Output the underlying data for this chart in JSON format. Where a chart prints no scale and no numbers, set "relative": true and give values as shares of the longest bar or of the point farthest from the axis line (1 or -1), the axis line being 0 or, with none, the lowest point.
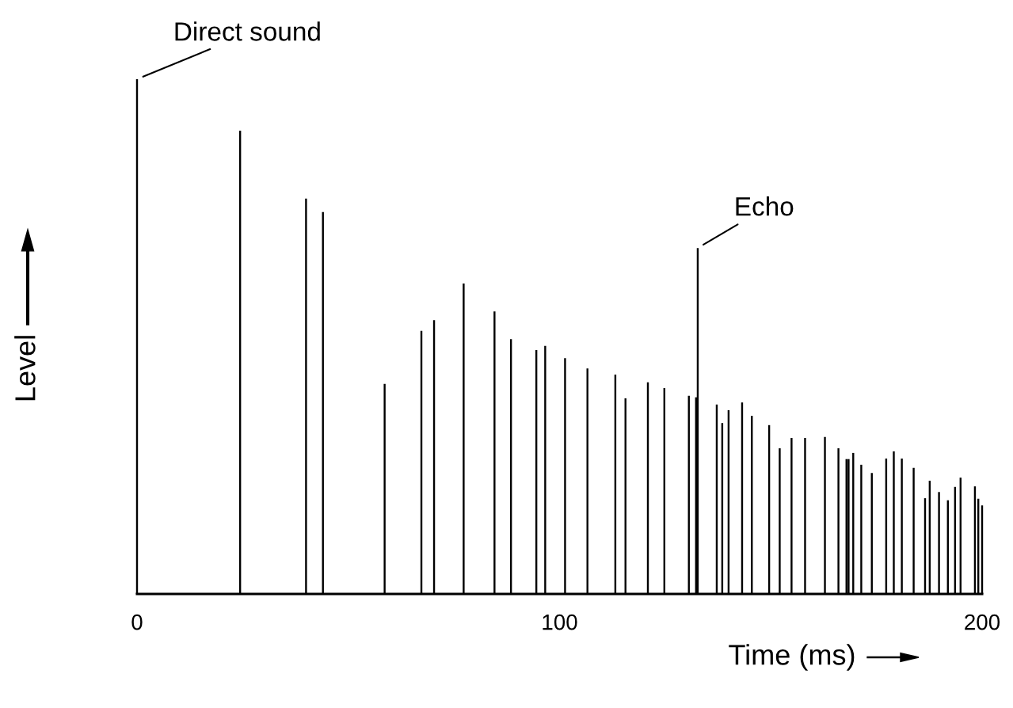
{
  "chart_data": {
    "type": "bar",
    "relative": true,
    "xlabel": "Time (ms)",
    "ylabel": "Level",
    "color": "#000000",
    "x": [
      0,
      24.4,
      40.0,
      44.0,
      58.6,
      67.3,
      70.3,
      77.3,
      84.6,
      88.5,
      94.5,
      96.6,
      101.3,
      106.6,
      113.2,
      115.6,
      120.9,
      124.8,
      130.6,
      132.3,
      132.7,
      137.2,
      138.5,
      140.0,
      143.2,
      145.5,
      149.6,
      152.1,
      154.9,
      158.1,
      162.8,
      166.0,
      167.9,
      168.4,
      169.5,
      171.4,
      173.9,
      177.3,
      179.1,
      181.0,
      183.8,
      186.5,
      187.6,
      189.8,
      191.9,
      193.6,
      194.9,
      198.3,
      199.1,
      200
    ],
    "values": [
      1.0,
      0.9,
      0.768,
      0.742,
      0.408,
      0.511,
      0.532,
      0.603,
      0.549,
      0.495,
      0.474,
      0.482,
      0.458,
      0.438,
      0.426,
      0.38,
      0.411,
      0.4,
      0.385,
      0.382,
      0.672,
      0.368,
      0.332,
      0.357,
      0.372,
      0.346,
      0.328,
      0.283,
      0.303,
      0.303,
      0.305,
      0.283,
      0.262,
      0.262,
      0.274,
      0.251,
      0.235,
      0.263,
      0.277,
      0.263,
      0.245,
      0.186,
      0.22,
      0.198,
      0.182,
      0.208,
      0.226,
      0.209,
      0.185,
      0.172
    ],
    "xlim": [
      0,
      200
    ],
    "xticks": [
      0,
      100,
      200
    ],
    "grid": false,
    "annotations": [
      {
        "text": "Direct sound",
        "x": 0,
        "y": 1.0
      },
      {
        "text": "Echo",
        "x": 132.7,
        "y": 0.672
      }
    ]
  }
}
